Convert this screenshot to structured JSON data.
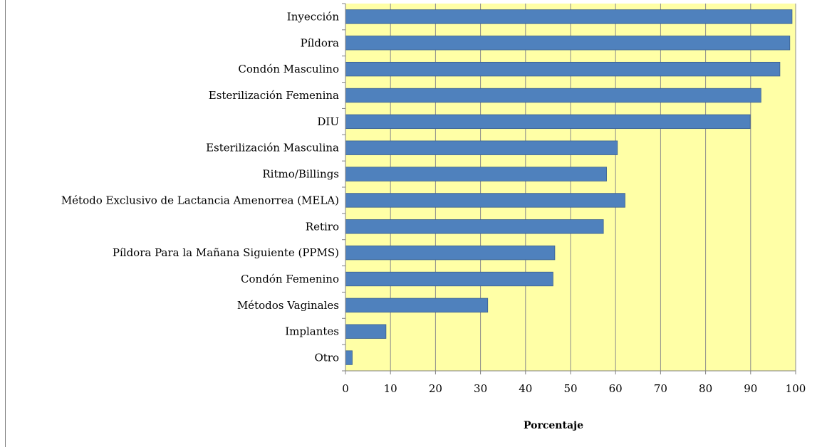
{
  "chart_data": {
    "type": "bar",
    "orientation": "horizontal",
    "categories": [
      "Inyección",
      "Píldora",
      "Condón Masculino",
      "Esterilización Femenina",
      "DIU",
      "Esterilización Masculina",
      "Ritmo/Billings",
      "Método Exclusivo de Lactancia Amenorrea (MELA)",
      "Retiro",
      "Píldora Para la Mañana Siguiente (PPMS)",
      "Condón Femenino",
      "Métodos Vaginales",
      "Implantes",
      "Otro"
    ],
    "values": [
      99.2,
      98.7,
      96.5,
      92.3,
      89.9,
      60.4,
      58.0,
      62.1,
      57.3,
      46.5,
      46.1,
      31.6,
      9.0,
      1.5
    ],
    "xlabel": "Porcentaje",
    "ylabel": "",
    "title": "",
    "xlim": [
      0,
      100
    ],
    "xticks": [
      "0",
      "10",
      "20",
      "30",
      "40",
      "50",
      "60",
      "70",
      "80",
      "90",
      "100"
    ],
    "grid": "vertical",
    "legend": "none",
    "colors": {
      "bar_fill": "#4f81bd",
      "bar_stroke": "#3a5f8f",
      "plot_background": "#ffffa6",
      "gridline": "#8c8c8c",
      "axis": "#808080"
    }
  }
}
